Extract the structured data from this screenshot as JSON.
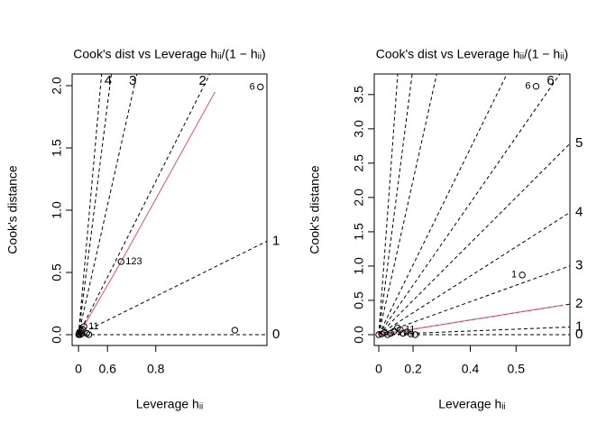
{
  "chart_data": [
    {
      "type": "scatter",
      "title": "Cook's dist vs Leverage  hᵢᵢ/(1 − hᵢᵢ)",
      "x_label": "Leverage  hᵢᵢ",
      "y_label": "Cook's distance",
      "xscale": "h/(1-h)",
      "xlim": [
        -0.49,
        0.907
      ],
      "ylim": [
        -0.087,
        2.094
      ],
      "xticks": [
        0,
        0.6,
        0.8
      ],
      "yticks": [
        {
          "value": 0,
          "label": "0.0"
        },
        0.5,
        {
          "value": 1,
          "label": "1.0"
        },
        1.5,
        {
          "value": 2,
          "label": "2.0"
        }
      ],
      "color": "#000000",
      "x": [
        0.01,
        0.03,
        0.05,
        0.08,
        0.12,
        0.15,
        0.18,
        0.22,
        0.3,
        0.35,
        0.688,
        0.89,
        0.904
      ],
      "values": [
        0.0,
        0.01,
        0.02,
        0.0,
        0.03,
        0.01,
        0.04,
        0.065,
        0.01,
        0.0,
        0.587,
        0.036,
        1.99
      ],
      "point_labels": [
        null,
        null,
        null,
        null,
        null,
        null,
        null,
        "11",
        null,
        null,
        "123",
        null,
        "6"
      ],
      "fit": {
        "color": "#DF536B",
        "x": [
          0.02,
          0.688,
          0.876
        ],
        "values": [
          0.0,
          0.587,
          1.95
        ]
      },
      "contours": [
        {
          "level": 0,
          "slope": 0
        },
        {
          "level": 1,
          "slope": 0.077
        },
        {
          "level": 2,
          "slope": 0.308
        },
        {
          "level": 3,
          "slope": 0.692
        },
        {
          "level": 4,
          "slope": 1.231
        },
        {
          "level": null,
          "slope": 1.75
        }
      ]
    },
    {
      "type": "scatter",
      "title": "Cook's dist vs Leverage  hᵢᵢ/(1 − hᵢᵢ)",
      "x_label": "Leverage  hᵢᵢ",
      "y_label": "Cook's distance",
      "xscale": "h/(1-h)",
      "xlim": [
        -0.034,
        0.582
      ],
      "ylim": [
        -0.158,
        3.8
      ],
      "xticks": [
        0,
        0.2,
        0.4,
        0.5
      ],
      "yticks": [
        {
          "value": 0,
          "label": "0.0"
        },
        0.5,
        {
          "value": 1,
          "label": "1.0"
        },
        1.5,
        {
          "value": 2,
          "label": "2.0"
        },
        2.5,
        {
          "value": 3,
          "label": "3.0"
        },
        3.5
      ],
      "color": "#000000",
      "x": [
        0.0,
        0.02,
        0.04,
        0.06,
        0.08,
        0.1,
        0.12,
        0.136,
        0.15,
        0.17,
        0.19,
        0.21,
        0.511,
        0.534
      ],
      "values": [
        0.0,
        0.01,
        0.03,
        0.0,
        0.02,
        0.05,
        0.1,
        0.07,
        0.02,
        0.04,
        0.01,
        0.0,
        0.87,
        3.62
      ],
      "point_labels": [
        null,
        null,
        null,
        null,
        null,
        null,
        null,
        "11",
        null,
        null,
        null,
        null,
        "1",
        "6"
      ],
      "fit": {
        "color": "#DF536B",
        "x": [
          0.0,
          0.573
        ],
        "values": [
          0.0,
          0.43
        ]
      },
      "contours": [
        {
          "level": 0,
          "slope": 0
        },
        {
          "level": 1,
          "slope": 0.08
        },
        {
          "level": 2,
          "slope": 0.32
        },
        {
          "level": 3,
          "slope": 0.72
        },
        {
          "level": 4,
          "slope": 1.28
        },
        {
          "level": 5,
          "slope": 2.0
        },
        {
          "level": 6,
          "slope": 2.88
        },
        {
          "level": null,
          "slope": 4.07
        },
        {
          "level": null,
          "slope": 9.0
        },
        {
          "level": null,
          "slope": 15.6
        },
        {
          "level": null,
          "slope": 27.5
        }
      ]
    }
  ]
}
